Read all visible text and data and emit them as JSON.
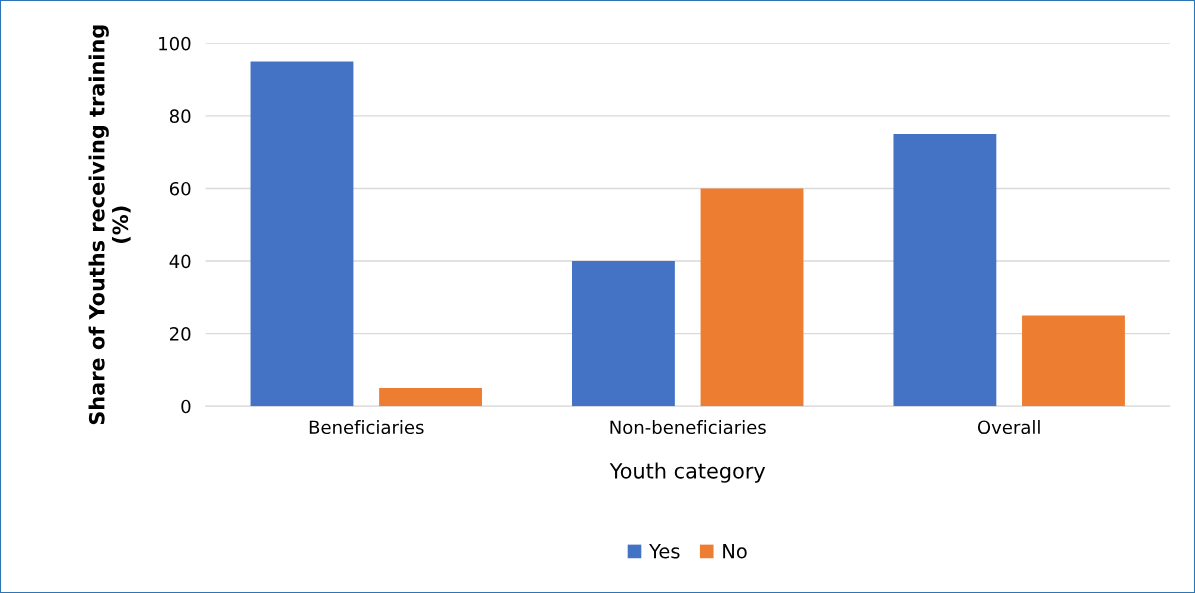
{
  "chart_data": {
    "type": "bar",
    "xlabel": "Youth category",
    "ylabel": "Share of Youths receiving training\n(%)",
    "categories": [
      "Beneficiaries",
      "Non-beneficiaries",
      "Overall"
    ],
    "series": [
      {
        "name": "Yes",
        "color": "#4472c4",
        "values": [
          95,
          40,
          75
        ]
      },
      {
        "name": "No",
        "color": "#ed7d31",
        "values": [
          5,
          60,
          25
        ]
      }
    ],
    "ylim": [
      0,
      100
    ],
    "yticks": [
      0,
      20,
      40,
      60,
      80,
      100
    ],
    "grid": "y",
    "legend": "bottom"
  }
}
